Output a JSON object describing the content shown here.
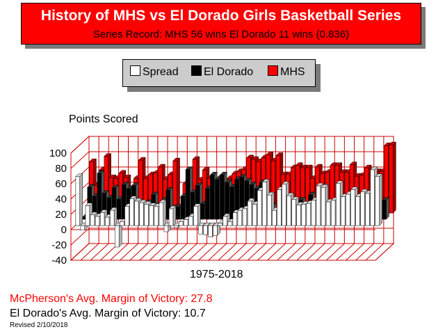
{
  "header": {
    "title": "History of MHS vs El Dorado Girls Basketball Series",
    "subtitle": "Series Record:  MHS 56 wins  El Dorado 11 wins (0.836)"
  },
  "legend": {
    "items": [
      {
        "label": "Spread",
        "color": "#ffffff"
      },
      {
        "label": "El Dorado",
        "color": "#000000"
      },
      {
        "label": "MHS",
        "color": "#ff0000"
      }
    ]
  },
  "chart_data": {
    "type": "bar",
    "ylabel": "Points Scored",
    "xlabel": "1975-2018",
    "ylim": [
      -40,
      100
    ],
    "yticks": [
      100,
      80,
      60,
      40,
      20,
      0,
      -20,
      -40
    ],
    "grid": true,
    "series": [
      {
        "name": "Spread",
        "values": [
          64,
          -6,
          26,
          14,
          12,
          17,
          11,
          20,
          -28,
          5,
          25,
          35,
          32,
          30,
          28,
          26,
          25,
          30,
          -8,
          22,
          -3,
          5,
          8,
          12,
          25,
          -11,
          -12,
          -15,
          -13,
          3,
          12,
          5,
          17,
          20,
          22,
          32,
          28,
          46,
          57,
          40,
          20,
          47,
          54,
          39,
          34,
          27,
          28,
          29,
          33,
          52,
          50,
          31,
          33,
          55,
          38,
          41,
          47,
          38,
          44,
          42,
          73,
          64
        ]
      },
      {
        "name": "El Dorado",
        "values": [
          3,
          42,
          30,
          60,
          34,
          28,
          41,
          26,
          45,
          40,
          44,
          10,
          18,
          22,
          32,
          18,
          25,
          38,
          15,
          16,
          30,
          65,
          35,
          44,
          20,
          40,
          58,
          52,
          58,
          48,
          42,
          52,
          55,
          50,
          45,
          40,
          48,
          22,
          18,
          10,
          30,
          12,
          8,
          20,
          25,
          18,
          32,
          22,
          20,
          10,
          12,
          22,
          20,
          8,
          10,
          8,
          12,
          12,
          10,
          12,
          15,
          25
        ]
      },
      {
        "name": "MHS",
        "values": [
          67,
          36,
          56,
          74,
          46,
          45,
          52,
          46,
          17,
          45,
          69,
          45,
          50,
          52,
          60,
          44,
          50,
          68,
          7,
          38,
          27,
          70,
          43,
          56,
          45,
          29,
          46,
          37,
          45,
          51,
          54,
          57,
          72,
          70,
          67,
          72,
          76,
          68,
          75,
          50,
          50,
          59,
          62,
          59,
          59,
          45,
          60,
          51,
          53,
          62,
          62,
          53,
          53,
          63,
          48,
          49,
          59,
          50,
          54,
          54,
          88,
          89
        ]
      }
    ]
  },
  "notes": {
    "mcpherson_margin": "McPherson's Avg. Margin of Victory: 27.8",
    "eldorado_margin": "El Dorado's Avg. Margin of Victory: 10.7",
    "revised": "Revised 2/10/2018"
  }
}
